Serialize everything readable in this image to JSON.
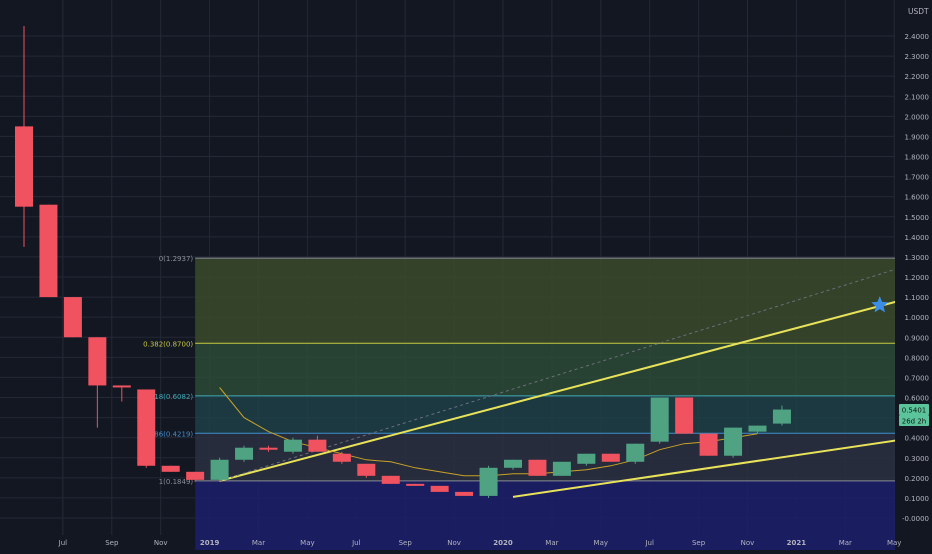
{
  "chart_data": {
    "type": "candlestick",
    "currency": "USDT",
    "interval": "monthly",
    "price_axis": {
      "min": -0.05,
      "max": 2.45,
      "ticks": [
        "2.4000",
        "2.3000",
        "2.2000",
        "2.1000",
        "2.0000",
        "1.9000",
        "1.8000",
        "1.7000",
        "1.6000",
        "1.5000",
        "1.4000",
        "1.3000",
        "1.2000",
        "1.1000",
        "1.0000",
        "0.9000",
        "0.8000",
        "0.7000",
        "0.6000",
        "0.5000",
        "0.4000",
        "0.3000",
        "0.2000",
        "0.1000",
        "-0.0000"
      ],
      "tick_values": [
        2.4,
        2.3,
        2.2,
        2.1,
        2.0,
        1.9,
        1.8,
        1.7,
        1.6,
        1.5,
        1.4,
        1.3,
        1.2,
        1.1,
        1.0,
        0.9,
        0.8,
        0.7,
        0.6,
        0.5,
        0.4,
        0.3,
        0.2,
        0.1,
        0.0
      ]
    },
    "time_axis": {
      "labels": [
        "Jul",
        "Sep",
        "Nov",
        "2019",
        "Mar",
        "May",
        "Jul",
        "Sep",
        "Nov",
        "2020",
        "Mar",
        "May",
        "Jul",
        "Sep",
        "Nov",
        "2021",
        "Mar",
        "May"
      ],
      "label_months": [
        "2018-07",
        "2018-09",
        "2018-11",
        "2019-01",
        "2019-03",
        "2019-05",
        "2019-07",
        "2019-09",
        "2019-11",
        "2020-01",
        "2020-03",
        "2020-05",
        "2020-07",
        "2020-09",
        "2020-11",
        "2021-01",
        "2021-03",
        "2021-05"
      ],
      "bold_labels": [
        "2019",
        "2020",
        "2021"
      ]
    },
    "candles": [
      {
        "month": "2018-05",
        "open": 1.95,
        "high": 2.45,
        "low": 1.35,
        "close": 1.55
      },
      {
        "month": "2018-06",
        "open": 1.56,
        "high": 1.56,
        "low": 1.1,
        "close": 1.1
      },
      {
        "month": "2018-07",
        "open": 1.1,
        "high": 1.1,
        "low": 0.9,
        "close": 0.9
      },
      {
        "month": "2018-08",
        "open": 0.9,
        "high": 0.9,
        "low": 0.45,
        "close": 0.66
      },
      {
        "month": "2018-09",
        "open": 0.66,
        "high": 0.66,
        "low": 0.58,
        "close": 0.65
      },
      {
        "month": "2018-10",
        "open": 0.64,
        "high": 0.64,
        "low": 0.25,
        "close": 0.26
      },
      {
        "month": "2018-11",
        "open": 0.26,
        "high": 0.26,
        "low": 0.23,
        "close": 0.23
      },
      {
        "month": "2018-12",
        "open": 0.23,
        "high": 0.23,
        "low": 0.18,
        "close": 0.19
      },
      {
        "month": "2019-01",
        "open": 0.19,
        "high": 0.3,
        "low": 0.18,
        "close": 0.29
      },
      {
        "month": "2019-02",
        "open": 0.29,
        "high": 0.36,
        "low": 0.28,
        "close": 0.35
      },
      {
        "month": "2019-03",
        "open": 0.35,
        "high": 0.36,
        "low": 0.33,
        "close": 0.34
      },
      {
        "month": "2019-04",
        "open": 0.33,
        "high": 0.4,
        "low": 0.32,
        "close": 0.39
      },
      {
        "month": "2019-05",
        "open": 0.39,
        "high": 0.41,
        "low": 0.33,
        "close": 0.33
      },
      {
        "month": "2019-06",
        "open": 0.32,
        "high": 0.33,
        "low": 0.27,
        "close": 0.28
      },
      {
        "month": "2019-07",
        "open": 0.27,
        "high": 0.27,
        "low": 0.2,
        "close": 0.21
      },
      {
        "month": "2019-08",
        "open": 0.21,
        "high": 0.21,
        "low": 0.17,
        "close": 0.17
      },
      {
        "month": "2019-09",
        "open": 0.17,
        "high": 0.17,
        "low": 0.16,
        "close": 0.16
      },
      {
        "month": "2019-10",
        "open": 0.16,
        "high": 0.16,
        "low": 0.13,
        "close": 0.13
      },
      {
        "month": "2019-11",
        "open": 0.13,
        "high": 0.13,
        "low": 0.11,
        "close": 0.11
      },
      {
        "month": "2019-12",
        "open": 0.11,
        "high": 0.26,
        "low": 0.1,
        "close": 0.25
      },
      {
        "month": "2020-01",
        "open": 0.25,
        "high": 0.29,
        "low": 0.24,
        "close": 0.29
      },
      {
        "month": "2020-02",
        "open": 0.29,
        "high": 0.29,
        "low": 0.21,
        "close": 0.21
      },
      {
        "month": "2020-03",
        "open": 0.21,
        "high": 0.28,
        "low": 0.21,
        "close": 0.28
      },
      {
        "month": "2020-04",
        "open": 0.27,
        "high": 0.32,
        "low": 0.26,
        "close": 0.32
      },
      {
        "month": "2020-05",
        "open": 0.32,
        "high": 0.32,
        "low": 0.28,
        "close": 0.28
      },
      {
        "month": "2020-06",
        "open": 0.28,
        "high": 0.37,
        "low": 0.27,
        "close": 0.37
      },
      {
        "month": "2020-07",
        "open": 0.38,
        "high": 0.6,
        "low": 0.37,
        "close": 0.6
      },
      {
        "month": "2020-08",
        "open": 0.6,
        "high": 0.6,
        "low": 0.42,
        "close": 0.42
      },
      {
        "month": "2020-09",
        "open": 0.42,
        "high": 0.42,
        "low": 0.31,
        "close": 0.31
      },
      {
        "month": "2020-10",
        "open": 0.31,
        "high": 0.45,
        "low": 0.3,
        "close": 0.45
      },
      {
        "month": "2020-11",
        "open": 0.43,
        "high": 0.46,
        "low": 0.42,
        "close": 0.46
      },
      {
        "month": "2020-12",
        "open": 0.47,
        "high": 0.56,
        "low": 0.46,
        "close": 0.54
      }
    ],
    "moving_average": [
      {
        "month": "2019-01",
        "value": 0.65
      },
      {
        "month": "2019-02",
        "value": 0.5
      },
      {
        "month": "2019-03",
        "value": 0.43
      },
      {
        "month": "2019-04",
        "value": 0.38
      },
      {
        "month": "2019-05",
        "value": 0.35
      },
      {
        "month": "2019-06",
        "value": 0.32
      },
      {
        "month": "2019-07",
        "value": 0.29
      },
      {
        "month": "2019-08",
        "value": 0.28
      },
      {
        "month": "2019-09",
        "value": 0.25
      },
      {
        "month": "2019-10",
        "value": 0.23
      },
      {
        "month": "2019-11",
        "value": 0.21
      },
      {
        "month": "2019-12",
        "value": 0.21
      },
      {
        "month": "2020-01",
        "value": 0.22
      },
      {
        "month": "2020-02",
        "value": 0.22
      },
      {
        "month": "2020-03",
        "value": 0.23
      },
      {
        "month": "2020-04",
        "value": 0.24
      },
      {
        "month": "2020-05",
        "value": 0.26
      },
      {
        "month": "2020-06",
        "value": 0.29
      },
      {
        "month": "2020-07",
        "value": 0.34
      },
      {
        "month": "2020-08",
        "value": 0.37
      },
      {
        "month": "2020-09",
        "value": 0.38
      },
      {
        "month": "2020-10",
        "value": 0.4
      },
      {
        "month": "2020-11",
        "value": 0.42
      }
    ],
    "fibonacci": {
      "start_month": "2018-12",
      "end_month": "2021-06",
      "levels": [
        {
          "label": "0(1.2937)",
          "value": 1.2937,
          "fill": "#3b4a2a"
        },
        {
          "label": "0.382(0.8700)",
          "value": 0.87,
          "fill": "#2c4a36"
        },
        {
          "label": "0.618(0.6082)",
          "value": 0.6082,
          "fill": "#1f3f48"
        },
        {
          "label": "0.786(0.4219)",
          "value": 0.4219,
          "fill": "#2a3040"
        },
        {
          "label": "1(0.1849)",
          "value": 0.1849,
          "fill": "#1c1f6b"
        }
      ],
      "label_colors": [
        "#8a8d95",
        "#c6c93f",
        "#3fa9b5",
        "#3f8ed0",
        "#8a8d95"
      ]
    },
    "trendlines": [
      {
        "from_month": "2019-01",
        "from_value": 0.185,
        "to_month": "2021-06",
        "to_value": 1.12,
        "color": "#e8e25a",
        "style": "solid"
      },
      {
        "from_month": "2020-01",
        "from_value": 0.105,
        "to_month": "2021-06",
        "to_value": 0.41,
        "color": "#e8e25a",
        "style": "solid"
      },
      {
        "from_month": "2019-01",
        "from_value": 0.185,
        "to_month": "2021-06",
        "to_value": 1.29,
        "color": "#6a6f7a",
        "style": "dashed"
      }
    ],
    "marker": {
      "month": "2021-04",
      "value": 1.06,
      "shape": "star",
      "color": "#3a8ee6"
    },
    "price_labels": [
      {
        "text": "0.5401",
        "value": 0.5401,
        "color": "#5cc49a"
      },
      {
        "text": "26d 2h",
        "value": 0.45,
        "color": "#5cc49a"
      }
    ],
    "colors": {
      "up": "#4fa383",
      "down": "#f0525f",
      "grid": "#242936",
      "axis_text": "#b2b5be"
    }
  }
}
